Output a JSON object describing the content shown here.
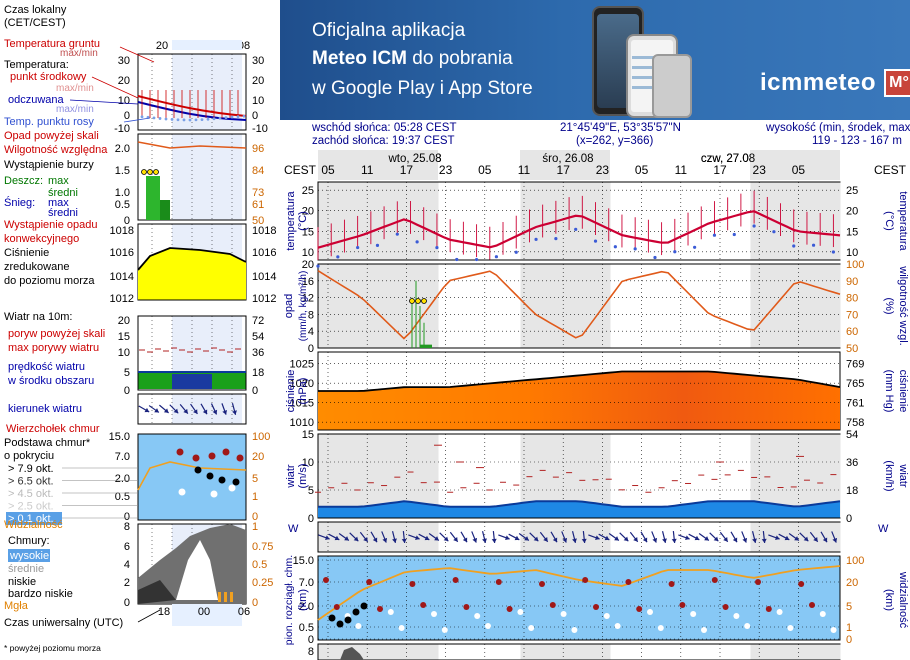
{
  "legend": {
    "time_local": [
      "Czas lokalny",
      "(CET/CEST)"
    ],
    "top_ticks": [
      "20",
      "02",
      "08"
    ],
    "ground_temp": [
      "Temperatura gruntu",
      "max/min"
    ],
    "temperature": "Temperatura:",
    "midpoint": "punkt środkowy",
    "maxmin": "max/min",
    "feels": "odczuwana",
    "dewpoint": "Temp. punktu rosy",
    "precip_above": "Opad powyżej skali",
    "humidity": "Wilgotność względna",
    "storm": "Wystąpienie burzy",
    "rain": "Deszcz:",
    "snow": "Śnieg:",
    "max": "max",
    "mean": "średni",
    "conv": [
      "Wystąpienie opadu",
      "konwekcyjnego"
    ],
    "pressure": [
      "Ciśnienie",
      "zredukowane",
      "do poziomu morza"
    ],
    "wind_at": "Wiatr na 10m:",
    "gust_above": "poryw powyżej skali",
    "gust_max": "max porywy wiatru",
    "wind_speed": [
      "prędkość wiatru",
      "w środku obszaru"
    ],
    "wind_dir": "kierunek wiatru",
    "top_cloud": "Wierzchołek chmur",
    "cloud_base": [
      "Podstawa chmur*",
      "o pokryciu"
    ],
    "okt": [
      "> 7.9 okt.",
      "> 6.5 okt.",
      "> 4.5 okt.",
      "> 2.5 okt.",
      "> 0.1 okt."
    ],
    "visibility": "Widzialność",
    "clouds": "Chmury:",
    "cloud_high": "wysokie",
    "cloud_mid": "średnie",
    "cloud_low": "niskie",
    "cloud_vlow": "bardzo niskie",
    "fog": "Mgła",
    "utc": "Czas uniwersalny (UTC)",
    "utc_ticks": [
      "18",
      "00",
      "06"
    ],
    "footnote": "* powyżej poziomu morza",
    "ticks_temp_l": [
      "30",
      "20",
      "10",
      "0",
      "-10"
    ],
    "ticks_temp_r": [
      "30",
      "20",
      "10",
      "0",
      "-10"
    ],
    "ticks_precip_l": [
      "2.0",
      "1.5",
      "1.0",
      "0.5",
      "0"
    ],
    "ticks_precip_r": [
      "96",
      "84",
      "73",
      "61",
      "50"
    ],
    "ticks_press_l": [
      "1018",
      "1016",
      "1014",
      "1012"
    ],
    "ticks_press_r": [
      "1018",
      "1016",
      "1014",
      "1012"
    ],
    "ticks_wind_l": [
      "20",
      "15",
      "10",
      "5",
      "0"
    ],
    "ticks_wind_r": [
      "72",
      "54",
      "36",
      "18",
      "0"
    ],
    "ticks_base_l": [
      "15.0",
      "7.0",
      "2.0",
      "0.5",
      "0"
    ],
    "ticks_base_r": [
      "100",
      "20",
      "5",
      "1",
      "0"
    ],
    "ticks_cloud_l": [
      "8",
      "6",
      "4",
      "2",
      "0"
    ],
    "ticks_cloud_r": [
      "1",
      "0.75",
      "0.5",
      "0.25",
      "0"
    ]
  },
  "banner": {
    "line1": "Oficjalna aplikacja",
    "line2_bold": "Meteo ICM",
    "line2_rest": " do pobrania",
    "line3": "w Google Play i App Store",
    "brand": "icmmeteo",
    "brand_box": "M°"
  },
  "info": {
    "sunrise": "wschód słońca: 05:28 CEST",
    "sunset": "zachód słońca: 19:37 CEST",
    "coords": "21°45'49\"E, 53°35'57\"N",
    "grid": "(x=262,  y=366)",
    "height_label": "wysokość (min, środek, max)",
    "height": "119 - 123 - 167 m"
  },
  "chart": {
    "cest": "CEST",
    "days": [
      "wto, 25.08",
      "śro, 26.08",
      "czw, 27.08"
    ],
    "hours": [
      "05",
      "11",
      "17",
      "23",
      "05",
      "11",
      "17",
      "23",
      "05",
      "11",
      "17",
      "23",
      "05"
    ],
    "labels": {
      "temperature": "temperatura",
      "deg_c": "(°C)",
      "precip": "opad",
      "precip_unit": "(mm/h, kg/m²/h)",
      "humidity_unit": "(%)",
      "humidity": "wilgotność wzgl.",
      "pressure": "ciśnienie",
      "hpa": "(hPa)",
      "mmhg": "(mm Hg)",
      "wind": "wiatr",
      "ms": "(m/s)",
      "kmh": "(km/h)",
      "cloud_base": "pion. rozciągł. chm.",
      "km": "(km)",
      "visibility": "widzialność",
      "wind_glyph": "W",
      "wind_glyph2": "N S"
    },
    "ticks": {
      "temp": [
        "25",
        "20",
        "15",
        "10"
      ],
      "precip_l": [
        "20",
        "16",
        "12",
        "8",
        "4",
        "0"
      ],
      "precip_r": [
        "100",
        "90",
        "80",
        "70",
        "60",
        "50"
      ],
      "press_l": [
        "1025",
        "1020",
        "1015",
        "1010"
      ],
      "press_r": [
        "769",
        "765",
        "761",
        "758"
      ],
      "wind_l": [
        "15",
        "10",
        "5",
        "0"
      ],
      "wind_r": [
        "54",
        "36",
        "18",
        "0"
      ],
      "base_l": [
        "15.0",
        "7.0",
        "2.0",
        "0.5",
        "0"
      ],
      "base_r": [
        "100",
        "20",
        "5",
        "1",
        "0"
      ],
      "bottom_l": [
        "8"
      ]
    },
    "colors": {
      "temp": "#cc0033",
      "dew": "#3b5bd6",
      "humidity": "#e05a1a",
      "precip": "#229922",
      "pressure_fill": "#ff8800",
      "pressure_line": "#000000",
      "wind_fill": "#1e88e5",
      "wind_dark": "#0a3a9a",
      "gust": "#b22222",
      "arrow": "#1a237e",
      "base_bg": "#87c8f5",
      "vis": "#f0a020"
    }
  },
  "chart_data": {
    "type": "line",
    "title": "",
    "x": [
      "05",
      "11",
      "17",
      "23",
      "05",
      "11",
      "17",
      "23",
      "05",
      "11",
      "17",
      "23",
      "05"
    ],
    "series": [
      {
        "name": "temperatura",
        "values": [
          11,
          14,
          18,
          13,
          11,
          16,
          19,
          14,
          12,
          17,
          20,
          15,
          14
        ]
      },
      {
        "name": "wilgotność wzgl.",
        "values": [
          96,
          80,
          55,
          90,
          96,
          70,
          55,
          90,
          96,
          70,
          60,
          90,
          82
        ]
      },
      {
        "name": "ciśnienie",
        "values": [
          1018,
          1018,
          1019,
          1019,
          1020,
          1021,
          1022,
          1023,
          1023,
          1023,
          1022,
          1021,
          1019
        ]
      },
      {
        "name": "wiatr",
        "values": [
          2,
          2,
          3,
          2,
          2,
          3,
          3,
          2,
          2,
          3,
          3,
          2,
          3
        ]
      }
    ],
    "ylim_temp": [
      8,
      27
    ],
    "ylim_pressure": [
      1008,
      1028
    ],
    "ylim_wind": [
      0,
      15
    ]
  }
}
